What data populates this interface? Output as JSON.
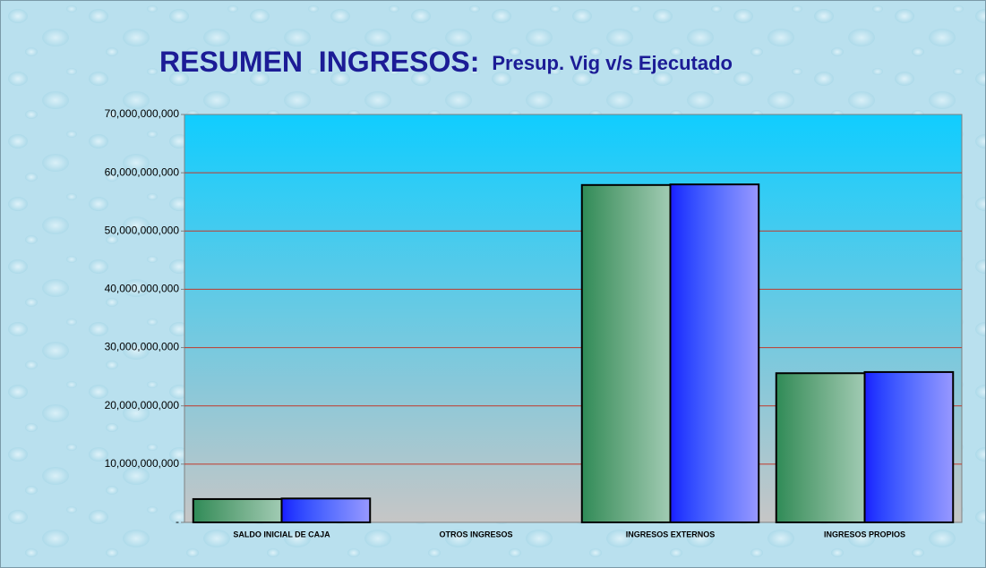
{
  "chart_data": {
    "type": "bar",
    "title": "RESUMEN  INGRESOS:",
    "subtitle": "Presup. Vig v/s Ejecutado",
    "categories": [
      "SALDO INICIAL DE CAJA",
      "OTROS INGRESOS",
      "INGRESOS EXTERNOS",
      "INGRESOS PROPIOS"
    ],
    "series": [
      {
        "color": "#2e8b57",
        "values": [
          4000000000,
          0,
          57900000000,
          25600000000
        ]
      },
      {
        "color": "#1a1aff",
        "values": [
          4100000000,
          0,
          58000000000,
          25800000000
        ]
      }
    ],
    "ylim": [
      0,
      70000000000
    ],
    "yticks": [
      {
        "value": 0,
        "label": "-"
      },
      {
        "value": 10000000000,
        "label": "10,000,000,000"
      },
      {
        "value": 20000000000,
        "label": "20,000,000,000"
      },
      {
        "value": 30000000000,
        "label": "30,000,000,000"
      },
      {
        "value": 40000000000,
        "label": "40,000,000,000"
      },
      {
        "value": 50000000000,
        "label": "50,000,000,000"
      },
      {
        "value": 60000000000,
        "label": "60,000,000,000"
      },
      {
        "value": 70000000000,
        "label": "70,000,000,000"
      }
    ],
    "grid": true
  }
}
